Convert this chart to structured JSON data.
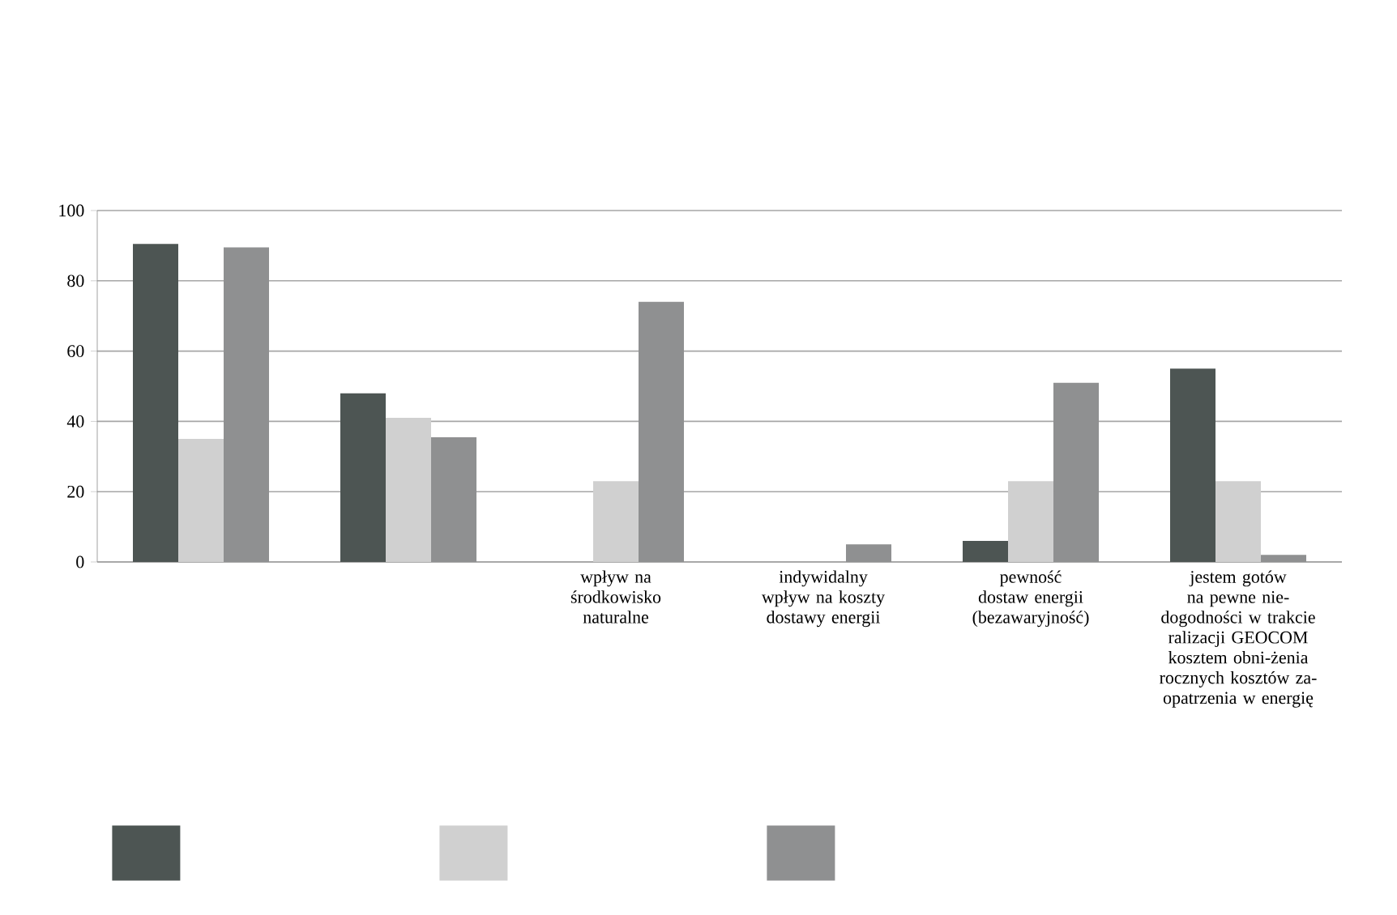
{
  "chart_data": {
    "type": "bar",
    "categories": [
      null,
      null,
      "wpływ na środkowisko naturalne",
      "indywidalny wpływ na koszty dostawy energii",
      "pewność dostaw energii (bezawaryjność)",
      "jestem gotów na pewne nie-dogodności w trakcie ralizacji GEOCOM kosztem obni-żenia rocznych kosztów za-opatrzenia w energię"
    ],
    "series": [
      {
        "color": "#4d5553",
        "values": [
          90.5,
          48,
          0,
          0,
          6,
          55
        ]
      },
      {
        "color": "#d0d0d0",
        "values": [
          35,
          41,
          23,
          0,
          23,
          23
        ]
      },
      {
        "color": "#8f9091",
        "values": [
          89.5,
          35.5,
          74,
          5,
          51,
          2
        ]
      }
    ],
    "ylim": [
      0,
      100
    ],
    "yticks": [
      0,
      20,
      40,
      60,
      80,
      100
    ],
    "grid": "y"
  }
}
